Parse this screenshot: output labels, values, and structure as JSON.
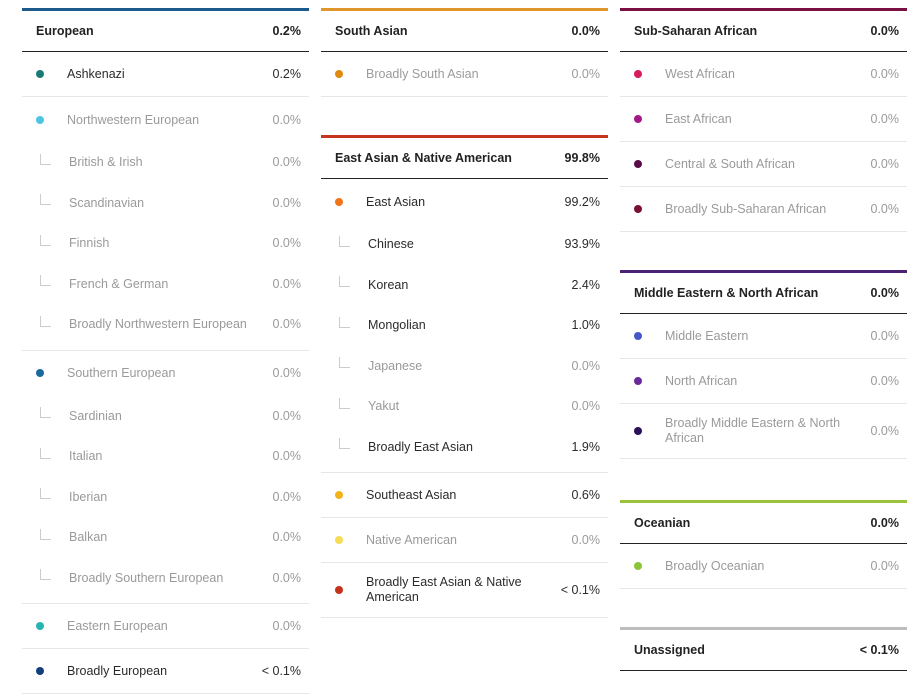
{
  "colors": {
    "european": "#1d5a8c",
    "south_asian": "#e0962a",
    "sub_saharan": "#7a1042",
    "east_asian_native": "#c6361c",
    "middle_eastern": "#4a2272",
    "oceanian": "#9bc33c",
    "unassigned": "#bdbdbd"
  },
  "european": {
    "name": "European",
    "value": "0.2%",
    "ashkenazi": {
      "name": "Ashkenazi",
      "value": "0.2%",
      "color": "#1a7a78"
    },
    "nw": {
      "name": "Northwestern European",
      "value": "0.0%",
      "color": "#4ec3e6",
      "subs": [
        {
          "name": "British & Irish",
          "value": "0.0%"
        },
        {
          "name": "Scandinavian",
          "value": "0.0%"
        },
        {
          "name": "Finnish",
          "value": "0.0%"
        },
        {
          "name": "French & German",
          "value": "0.0%"
        },
        {
          "name": "Broadly Northwestern European",
          "value": "0.0%"
        }
      ]
    },
    "south": {
      "name": "Southern European",
      "value": "0.0%",
      "color": "#1a6aa0",
      "subs": [
        {
          "name": "Sardinian",
          "value": "0.0%"
        },
        {
          "name": "Italian",
          "value": "0.0%"
        },
        {
          "name": "Iberian",
          "value": "0.0%"
        },
        {
          "name": "Balkan",
          "value": "0.0%"
        },
        {
          "name": "Broadly Southern European",
          "value": "0.0%"
        }
      ]
    },
    "eastern": {
      "name": "Eastern European",
      "value": "0.0%",
      "color": "#28b3b3"
    },
    "broad": {
      "name": "Broadly European",
      "value": "< 0.1%",
      "color": "#123e7a"
    }
  },
  "south_asian": {
    "name": "South Asian",
    "value": "0.0%",
    "broad": {
      "name": "Broadly South Asian",
      "value": "0.0%",
      "color": "#e08a12"
    }
  },
  "east_asian_native": {
    "name": "East Asian & Native American",
    "value": "99.8%",
    "east_asian": {
      "name": "East Asian",
      "value": "99.2%",
      "color": "#f07418",
      "subs": [
        {
          "name": "Chinese",
          "value": "93.9%",
          "muted": false
        },
        {
          "name": "Korean",
          "value": "2.4%",
          "muted": false
        },
        {
          "name": "Mongolian",
          "value": "1.0%",
          "muted": false
        },
        {
          "name": "Japanese",
          "value": "0.0%",
          "muted": true
        },
        {
          "name": "Yakut",
          "value": "0.0%",
          "muted": true
        },
        {
          "name": "Broadly East Asian",
          "value": "1.9%",
          "muted": false
        }
      ]
    },
    "southeast": {
      "name": "Southeast Asian",
      "value": "0.6%",
      "color": "#f2b21a"
    },
    "native": {
      "name": "Native American",
      "value": "0.0%",
      "color": "#f5dc54"
    },
    "broad": {
      "name": "Broadly East Asian & Native American",
      "value": "< 0.1%",
      "color": "#c4321a"
    }
  },
  "sub_saharan": {
    "name": "Sub-Saharan African",
    "value": "0.0%",
    "items": [
      {
        "name": "West African",
        "value": "0.0%",
        "color": "#d81b5c"
      },
      {
        "name": "East African",
        "value": "0.0%",
        "color": "#a31a86"
      },
      {
        "name": "Central & South African",
        "value": "0.0%",
        "color": "#5a0c48"
      },
      {
        "name": "Broadly Sub-Saharan African",
        "value": "0.0%",
        "color": "#7a1030"
      }
    ]
  },
  "middle_eastern": {
    "name": "Middle Eastern & North African",
    "value": "0.0%",
    "items": [
      {
        "name": "Middle Eastern",
        "value": "0.0%",
        "color": "#4558c6"
      },
      {
        "name": "North African",
        "value": "0.0%",
        "color": "#6a2a9a"
      },
      {
        "name": "Broadly Middle Eastern & North African",
        "value": "0.0%",
        "color": "#2a0f5a"
      }
    ]
  },
  "oceanian": {
    "name": "Oceanian",
    "value": "0.0%",
    "broad": {
      "name": "Broadly Oceanian",
      "value": "0.0%",
      "color": "#8cc43a"
    }
  },
  "unassigned": {
    "name": "Unassigned",
    "value": "< 0.1%"
  }
}
